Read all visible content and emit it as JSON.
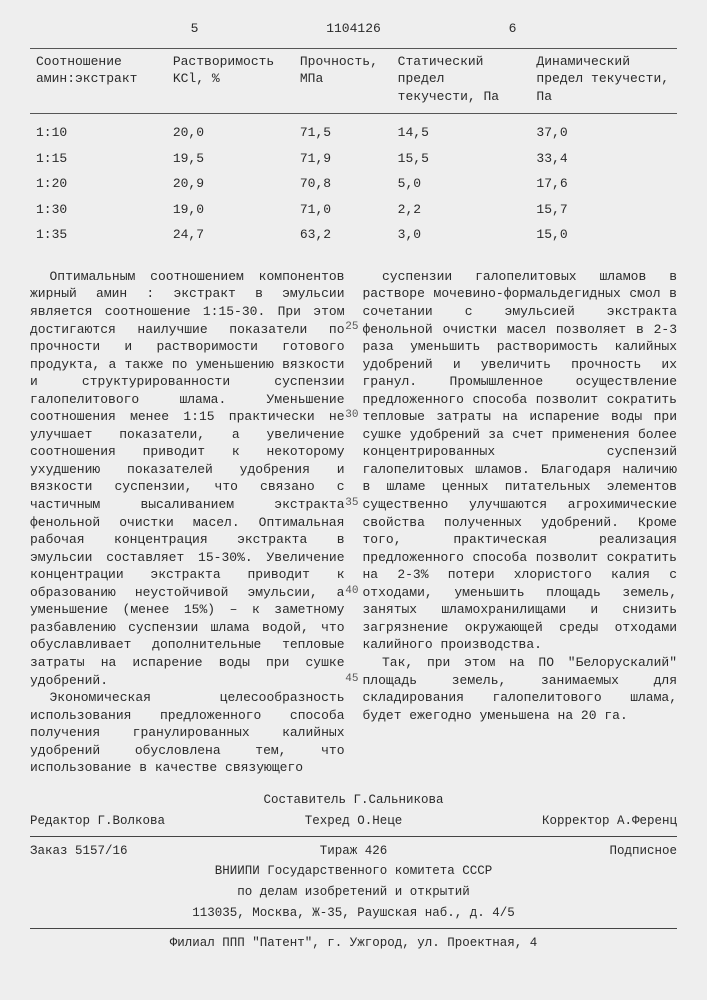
{
  "header": {
    "left_page": "5",
    "doc_number": "1104126",
    "right_page": "6"
  },
  "table": {
    "columns": [
      "Соотношение амин:экстракт",
      "Растворимость KCl, %",
      "Прочность, МПа",
      "Статический предел текучести, Па",
      "Динамический предел текучести, Па"
    ],
    "rows": [
      [
        "1:10",
        "20,0",
        "71,5",
        "14,5",
        "37,0"
      ],
      [
        "1:15",
        "19,5",
        "71,9",
        "15,5",
        "33,4"
      ],
      [
        "1:20",
        "20,9",
        "70,8",
        "5,0",
        "17,6"
      ],
      [
        "1:30",
        "19,0",
        "71,0",
        "2,2",
        "15,7"
      ],
      [
        "1:35",
        "24,7",
        "63,2",
        "3,0",
        "15,0"
      ]
    ]
  },
  "body": {
    "left": {
      "p1": "Оптимальным соотношением компонентов жирный амин : экстракт в эмульсии является соотношение 1:15-30. При этом достигаются наилучшие показатели по прочности и растворимости готового продукта, а также по уменьшению вязкости и структурированности суспензии галопелитового шлама. Уменьшение соотношения менее 1:15 практически не улучшает показатели, а увеличение соотношения приводит к некоторому ухудшению показателей удобрения и вязкости суспензии, что связано с частичным высаливанием экстракта фенольной очистки масел. Оптимальная рабочая концентрация экстракта в эмульсии составляет 15-30%. Увеличение концентрации экстракта приводит к образованию неустойчивой эмульсии, а уменьшение (менее 15%) – к заметному разбавлению суспензии шлама водой, что обуславливает дополнительные тепловые затраты на испарение воды при сушке удобрений.",
      "p2": "Экономическая целесообразность использования предложенного способа получения гранулированных калийных удобрений обусловлена тем, что использование в качестве связующего"
    },
    "right": {
      "p1": "суспензии галопелитовых шламов в растворе мочевино-формальдегидных смол в сочетании с эмульсией экстракта фенольной очистки масел позволяет в 2-3 раза уменьшить растворимость калийных удобрений и увеличить прочность их гранул. Промышленное осуществление предложенного способа позволит сократить тепловые затраты на испарение воды при сушке удобрений за счет применения более концентрированных суспензий галопелитовых шламов. Благодаря наличию в шламе ценных питательных элементов существенно улучшаются агрохимические свойства полученных удобрений. Кроме того, практическая реализация предложенного способа позволит сократить на 2-3% потери хлористого калия с отходами, уменьшить площадь земель, занятых шламохранилищами и снизить загрязнение окружающей среды отходами калийного производства.",
      "p2": "Так, при этом на ПО \"Белорускалий\" площадь земель, занимаемых для складирования галопелитового шлама, будет ежегодно уменьшена на 20 га."
    },
    "linenums": {
      "l25": "25",
      "l30": "30",
      "l35": "35",
      "l40": "40",
      "l45": "45"
    }
  },
  "footer": {
    "compiler": "Составитель Г.Сальникова",
    "editor_label": "Редактор Г.Волкова",
    "tech_label": "Техред О.Неце",
    "corrector_label": "Корректор А.Ференц",
    "order": "Заказ 5157/16",
    "circulation": "Тираж 426",
    "subscription": "Подписное",
    "org_line1": "ВНИИПИ Государственного комитета СССР",
    "org_line2": "по делам изобретений и открытий",
    "address1": "113035, Москва, Ж-35, Раушская наб., д. 4/5",
    "address2": "Филиал ППП \"Патент\", г. Ужгород, ул. Проектная, 4"
  }
}
